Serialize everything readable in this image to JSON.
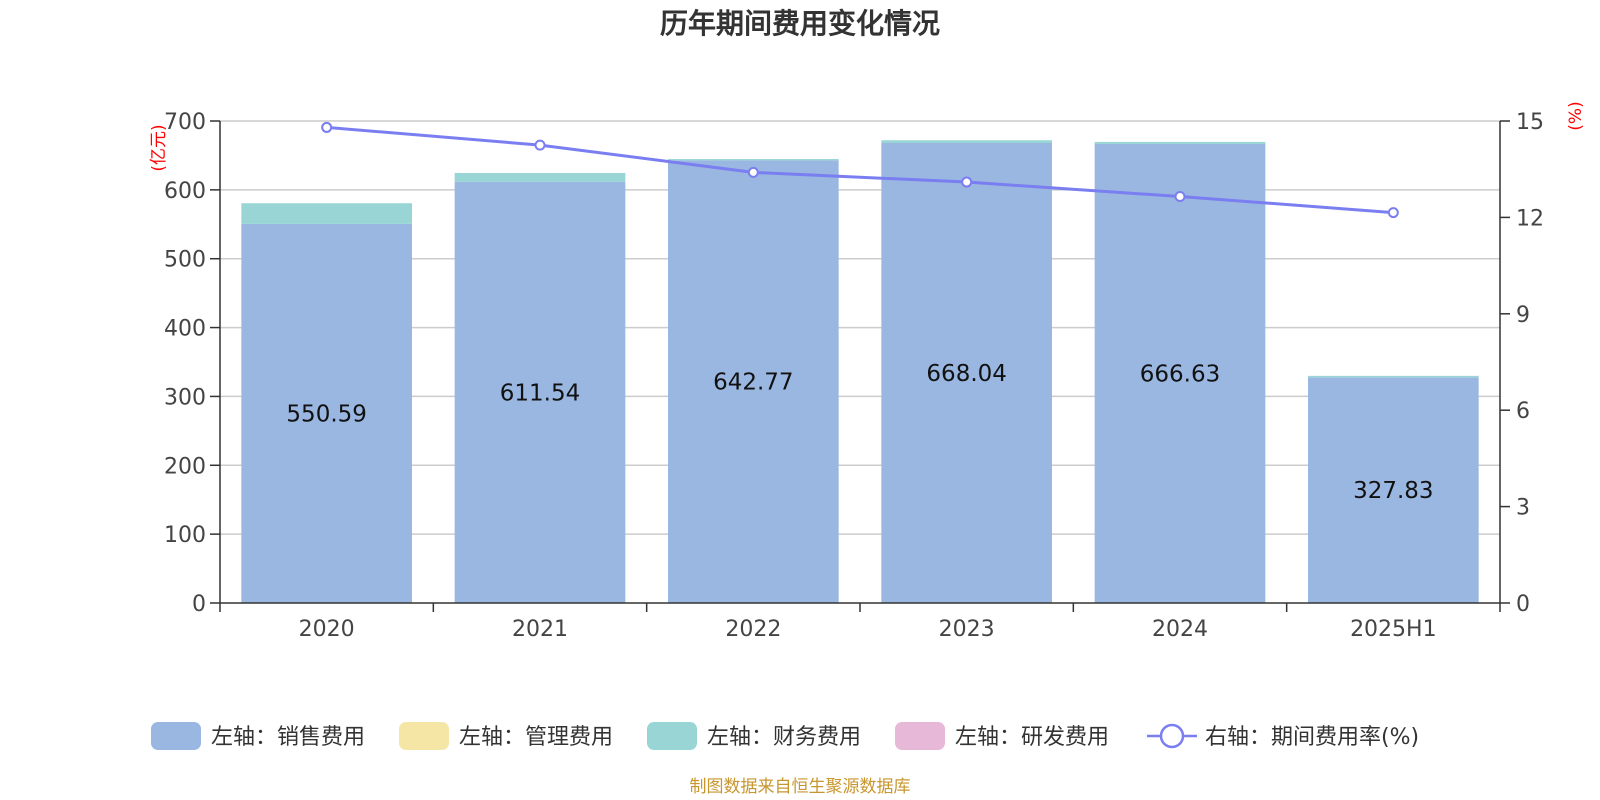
{
  "chart_data": {
    "type": "bar",
    "title": "历年期间费用变化情况",
    "categories": [
      "2020",
      "2021",
      "2022",
      "2023",
      "2024",
      "2025H1"
    ],
    "left_axis": {
      "unit": "(亿元)",
      "ylim": [
        0,
        700
      ],
      "ticks": [
        "0",
        "100",
        "200",
        "300",
        "400",
        "500",
        "600",
        "700"
      ]
    },
    "right_axis": {
      "unit": "(%)",
      "ylim": [
        0,
        15
      ],
      "ticks": [
        "0",
        "3",
        "6",
        "9",
        "12",
        "15"
      ]
    },
    "series": [
      {
        "name": "左轴：销售费用",
        "kind": "bar",
        "color": "#9ab7e2",
        "values": [
          550.59,
          611.54,
          642.77,
          668.04,
          666.63,
          327.83
        ],
        "labels": [
          "550.59",
          "611.54",
          "642.77",
          "668.04",
          "666.63",
          "327.83"
        ]
      },
      {
        "name": "左轴：管理费用",
        "kind": "bar",
        "color": "#f6e6a6",
        "values": [
          0,
          0,
          0,
          0,
          0,
          0
        ]
      },
      {
        "name": "左轴：财务费用",
        "kind": "bar",
        "color": "#98d5d4",
        "values": [
          30,
          13,
          2,
          4,
          3,
          2
        ]
      },
      {
        "name": "左轴：研发费用",
        "kind": "bar",
        "color": "#e8b8d8",
        "values": [
          0,
          0,
          0,
          0,
          0,
          0
        ]
      },
      {
        "name": "右轴：期间费用率(%)",
        "kind": "line",
        "axis": "right",
        "color": "#7a7ef0",
        "values": [
          14.8,
          14.25,
          13.4,
          13.1,
          12.65,
          12.15
        ]
      }
    ],
    "legend_position": "bottom",
    "grid": true
  },
  "source_note": "制图数据来自恒生聚源数据库"
}
